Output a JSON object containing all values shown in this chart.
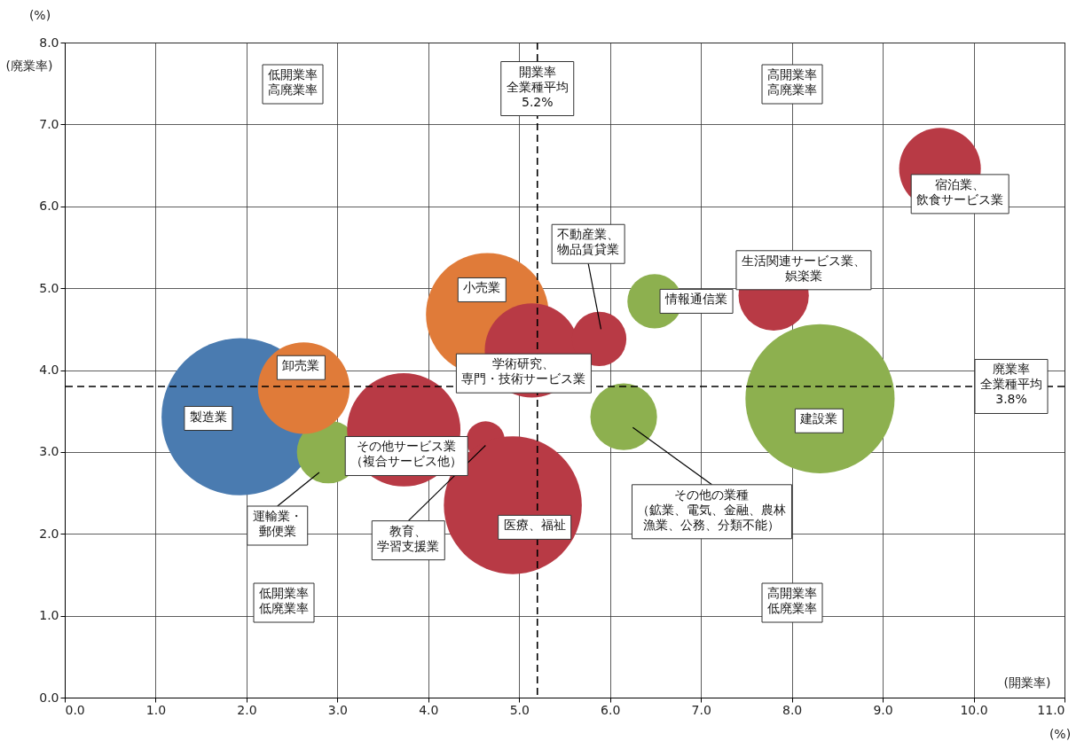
{
  "chart_data": {
    "type": "bubble",
    "xlabel": "(開業率)\n(%)",
    "ylabel": "(%)\n(廃業率)",
    "xlim": [
      0,
      11
    ],
    "ylim": [
      0,
      8
    ],
    "xticks": [
      {
        "value": 0,
        "label": "0.0"
      },
      {
        "value": 1,
        "label": "1.0"
      },
      {
        "value": 2,
        "label": "2.0"
      },
      {
        "value": 3,
        "label": "3.0"
      },
      {
        "value": 4,
        "label": "4.0"
      },
      {
        "value": 5,
        "label": "5.0"
      },
      {
        "value": 6,
        "label": "6.0"
      },
      {
        "value": 7,
        "label": "7.0"
      },
      {
        "value": 8,
        "label": "8.0"
      },
      {
        "value": 9,
        "label": "9.0"
      },
      {
        "value": 10,
        "label": "10.0"
      },
      {
        "value": 11,
        "label": "11.0"
      }
    ],
    "yticks": [
      {
        "value": 0,
        "label": "0.0"
      },
      {
        "value": 1,
        "label": "1.0"
      },
      {
        "value": 2,
        "label": "2.0"
      },
      {
        "value": 3,
        "label": "3.0"
      },
      {
        "value": 4,
        "label": "4.0"
      },
      {
        "value": 5,
        "label": "5.0"
      },
      {
        "value": 6,
        "label": "6.0"
      },
      {
        "value": 7,
        "label": "7.0"
      },
      {
        "value": 8,
        "label": "8.0"
      }
    ],
    "grid": true,
    "series": [
      {
        "name": "製造業",
        "color": "#4a7bb0",
        "x": [
          1.93
        ],
        "values": [
          3.43
        ],
        "sizes": [
          1
        ]
      },
      {
        "name": "運輸業・郵便業",
        "color": "#8db04f",
        "x": [
          2.9
        ],
        "values": [
          3.0
        ],
        "sizes": [
          0.16
        ]
      },
      {
        "name": "卸売業",
        "color": "#e07b39",
        "x": [
          2.63
        ],
        "values": [
          3.78
        ],
        "sizes": [
          0.34
        ]
      },
      {
        "name": "その他サービス業（複合サービス他）",
        "color": "#b83a45",
        "x": [
          3.73
        ],
        "values": [
          3.27
        ],
        "sizes": [
          0.52
        ]
      },
      {
        "name": "教育、学習支援業",
        "color": "#b83a45",
        "x": [
          4.63
        ],
        "values": [
          3.14
        ],
        "sizes": [
          0.06
        ]
      },
      {
        "name": "医療、福祉",
        "color": "#b83a45",
        "x": [
          4.93
        ],
        "values": [
          2.35
        ],
        "sizes": [
          0.77
        ]
      },
      {
        "name": "小売業",
        "color": "#e07b39",
        "x": [
          4.65
        ],
        "values": [
          4.68
        ],
        "sizes": [
          0.61
        ]
      },
      {
        "name": "学術研究、専門・技術サービス業",
        "color": "#b83a45",
        "x": [
          5.14
        ],
        "values": [
          4.24
        ],
        "sizes": [
          0.36
        ]
      },
      {
        "name": "不動産業、物品賃貸業",
        "color": "#b83a45",
        "x": [
          5.88
        ],
        "values": [
          4.38
        ],
        "sizes": [
          0.12
        ]
      },
      {
        "name": "情報通信業",
        "color": "#8db04f",
        "x": [
          6.49
        ],
        "values": [
          4.84
        ],
        "sizes": [
          0.12
        ]
      },
      {
        "name": "その他の業種（鉱業、電気、金融、農林漁業、公務、分類不能）",
        "color": "#8db04f",
        "x": [
          6.15
        ],
        "values": [
          3.43
        ],
        "sizes": [
          0.18
        ]
      },
      {
        "name": "生活関連サービス業、娯楽業",
        "color": "#b83a45",
        "x": [
          7.8
        ],
        "values": [
          4.91
        ],
        "sizes": [
          0.2
        ]
      },
      {
        "name": "建設業",
        "color": "#8db04f",
        "x": [
          8.31
        ],
        "values": [
          3.65
        ],
        "sizes": [
          0.9
        ]
      },
      {
        "name": "宿泊業、飲食サービス業",
        "color": "#b83a45",
        "x": [
          9.63
        ],
        "values": [
          6.46
        ],
        "sizes": [
          0.27
        ]
      }
    ],
    "ref_lines": [
      {
        "axis": "x",
        "value": 5.2,
        "label": "開業率全業種平均5.2%",
        "color": "#000000",
        "line_style": "dashed"
      },
      {
        "axis": "y",
        "value": 3.8,
        "label": "廃業率全業種平均3.8%",
        "color": "#000000",
        "line_style": "dashed"
      }
    ],
    "annotations": [
      "低開業率高廃業率",
      "高開業率高廃業率",
      "低開業率低廃業率",
      "高開業率低廃業率"
    ]
  }
}
